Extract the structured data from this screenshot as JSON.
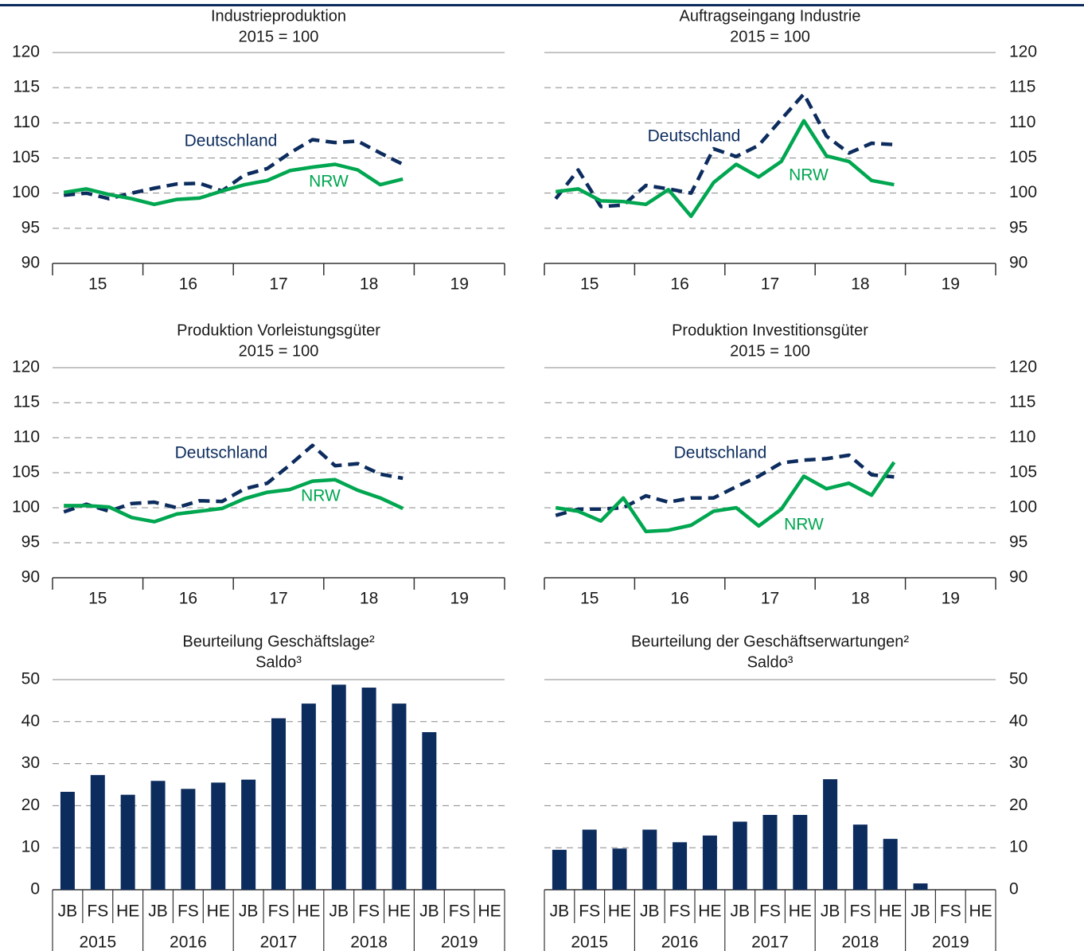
{
  "chart_data": [
    {
      "type": "line",
      "title": "Industrieproduktion",
      "subtitle": "2015 = 100",
      "x": [
        15.125,
        15.375,
        15.625,
        15.875,
        16.125,
        16.375,
        16.625,
        16.875,
        17.125,
        17.375,
        17.625,
        17.875,
        18.125,
        18.375,
        18.625,
        18.875
      ],
      "xlim": [
        15,
        20
      ],
      "xticks": [
        {
          "value": 15.5,
          "label": "15"
        },
        {
          "value": 16.5,
          "label": "16"
        },
        {
          "value": 17.5,
          "label": "17"
        },
        {
          "value": 18.5,
          "label": "18"
        },
        {
          "value": 19.5,
          "label": "19"
        }
      ],
      "ylim": [
        90,
        120
      ],
      "yticks": [
        90,
        95,
        100,
        105,
        110,
        115,
        120
      ],
      "yaxis_side": "left",
      "grid": true,
      "series": [
        {
          "name": "Deutschland",
          "color": "#0c2c5e",
          "dash": true,
          "values": [
            99.7,
            100.0,
            99.2,
            100.0,
            100.7,
            101.3,
            101.4,
            100.3,
            102.6,
            103.5,
            105.7,
            107.6,
            107.2,
            107.4,
            105.7,
            104.1
          ]
        },
        {
          "name": "NRW",
          "color": "#00a650",
          "values": [
            100.1,
            100.6,
            99.8,
            99.2,
            98.4,
            99.1,
            99.3,
            100.3,
            101.2,
            101.8,
            103.2,
            103.7,
            104.1,
            103.3,
            101.2,
            102.0
          ]
        }
      ]
    },
    {
      "type": "line",
      "title": "Auftragseingang Industrie",
      "subtitle": "2015 = 100",
      "x": [
        15.125,
        15.375,
        15.625,
        15.875,
        16.125,
        16.375,
        16.625,
        16.875,
        17.125,
        17.375,
        17.625,
        17.875,
        18.125,
        18.375,
        18.625,
        18.875
      ],
      "xlim": [
        15,
        20
      ],
      "xticks": [
        {
          "value": 15.5,
          "label": "15"
        },
        {
          "value": 16.5,
          "label": "16"
        },
        {
          "value": 17.5,
          "label": "17"
        },
        {
          "value": 18.5,
          "label": "18"
        },
        {
          "value": 19.5,
          "label": "19"
        }
      ],
      "ylim": [
        90,
        120
      ],
      "yticks": [
        90,
        95,
        100,
        105,
        110,
        115,
        120
      ],
      "yaxis_side": "right",
      "grid": true,
      "series": [
        {
          "name": "Deutschland",
          "color": "#0c2c5e",
          "dash": true,
          "values": [
            99.2,
            103.3,
            98.1,
            98.3,
            101.1,
            100.6,
            100.0,
            106.3,
            105.2,
            106.8,
            110.5,
            114.1,
            108.1,
            105.7,
            107.1,
            106.9
          ]
        },
        {
          "name": "NRW",
          "color": "#00a650",
          "values": [
            100.2,
            100.6,
            98.9,
            98.8,
            98.4,
            100.5,
            96.7,
            101.5,
            104.1,
            102.3,
            104.5,
            110.3,
            105.3,
            104.5,
            101.8,
            101.2
          ]
        }
      ]
    },
    {
      "type": "line",
      "title": "Produktion Vorleistungsgüter",
      "subtitle": "2015 = 100",
      "x": [
        15.125,
        15.375,
        15.625,
        15.875,
        16.125,
        16.375,
        16.625,
        16.875,
        17.125,
        17.375,
        17.625,
        17.875,
        18.125,
        18.375,
        18.625,
        18.875
      ],
      "xlim": [
        15,
        20
      ],
      "xticks": [
        {
          "value": 15.5,
          "label": "15"
        },
        {
          "value": 16.5,
          "label": "16"
        },
        {
          "value": 17.5,
          "label": "17"
        },
        {
          "value": 18.5,
          "label": "18"
        },
        {
          "value": 19.5,
          "label": "19"
        }
      ],
      "ylim": [
        90,
        120
      ],
      "yticks": [
        90,
        95,
        100,
        105,
        110,
        115,
        120
      ],
      "yaxis_side": "left",
      "grid": true,
      "series": [
        {
          "name": "Deutschland",
          "color": "#0c2c5e",
          "dash": true,
          "values": [
            99.4,
            100.5,
            99.5,
            100.6,
            100.8,
            100.0,
            101.0,
            100.9,
            102.7,
            103.5,
            106.1,
            108.9,
            106.0,
            106.3,
            104.8,
            104.2
          ]
        },
        {
          "name": "NRW",
          "color": "#00a650",
          "values": [
            100.3,
            100.3,
            100.1,
            98.6,
            98.0,
            99.1,
            99.5,
            99.9,
            101.3,
            102.2,
            102.6,
            103.8,
            104.0,
            102.5,
            101.4,
            99.9
          ]
        }
      ]
    },
    {
      "type": "line",
      "title": "Produktion Investitionsgüter",
      "subtitle": "2015 = 100",
      "x": [
        15.125,
        15.375,
        15.625,
        15.875,
        16.125,
        16.375,
        16.625,
        16.875,
        17.125,
        17.375,
        17.625,
        17.875,
        18.125,
        18.375,
        18.625,
        18.875
      ],
      "xlim": [
        15,
        20
      ],
      "xticks": [
        {
          "value": 15.5,
          "label": "15"
        },
        {
          "value": 16.5,
          "label": "16"
        },
        {
          "value": 17.5,
          "label": "17"
        },
        {
          "value": 18.5,
          "label": "18"
        },
        {
          "value": 19.5,
          "label": "19"
        }
      ],
      "ylim": [
        90,
        120
      ],
      "yticks": [
        90,
        95,
        100,
        105,
        110,
        115,
        120
      ],
      "yaxis_side": "right",
      "grid": true,
      "series": [
        {
          "name": "Deutschland",
          "color": "#0c2c5e",
          "dash": true,
          "values": [
            98.9,
            99.8,
            99.8,
            100.0,
            101.7,
            100.8,
            101.4,
            101.4,
            103.0,
            104.5,
            106.4,
            106.8,
            107.0,
            107.5,
            104.7,
            104.4
          ]
        },
        {
          "name": "NRW",
          "color": "#00a650",
          "values": [
            100.0,
            99.5,
            98.1,
            101.4,
            96.6,
            96.8,
            97.5,
            99.5,
            100.0,
            97.4,
            99.8,
            104.5,
            102.7,
            103.5,
            101.8,
            106.5
          ]
        }
      ]
    },
    {
      "type": "bar",
      "title": "Beurteilung Geschäftslage²",
      "subtitle": "Saldo³",
      "categories": [
        "JB",
        "FS",
        "HE",
        "JB",
        "FS",
        "HE",
        "JB",
        "FS",
        "HE",
        "JB",
        "FS",
        "HE",
        "JB",
        "FS",
        "HE"
      ],
      "category_groups": [
        "2015",
        "2016",
        "2017",
        "2018",
        "2019"
      ],
      "values": [
        23.3,
        27.3,
        22.6,
        25.9,
        24.0,
        25.5,
        26.2,
        40.8,
        44.3,
        48.8,
        48.1,
        44.3,
        37.5,
        null,
        null
      ],
      "color": "#0c2c5e",
      "ylim": [
        0,
        50
      ],
      "yticks": [
        0,
        10,
        20,
        30,
        40,
        50
      ],
      "yaxis_side": "left",
      "grid": true
    },
    {
      "type": "bar",
      "title": "Beurteilung der Geschäftserwartungen²",
      "subtitle": "Saldo³",
      "categories": [
        "JB",
        "FS",
        "HE",
        "JB",
        "FS",
        "HE",
        "JB",
        "FS",
        "HE",
        "JB",
        "FS",
        "HE",
        "JB",
        "FS",
        "HE"
      ],
      "category_groups": [
        "2015",
        "2016",
        "2017",
        "2018",
        "2019"
      ],
      "values": [
        9.5,
        14.3,
        9.8,
        14.3,
        11.3,
        12.9,
        16.2,
        17.8,
        17.8,
        26.3,
        15.5,
        12.1,
        1.5,
        null,
        null
      ],
      "color": "#0c2c5e",
      "ylim": [
        0,
        50
      ],
      "yticks": [
        0,
        10,
        20,
        30,
        40,
        50
      ],
      "yaxis_side": "right",
      "grid": true
    }
  ]
}
